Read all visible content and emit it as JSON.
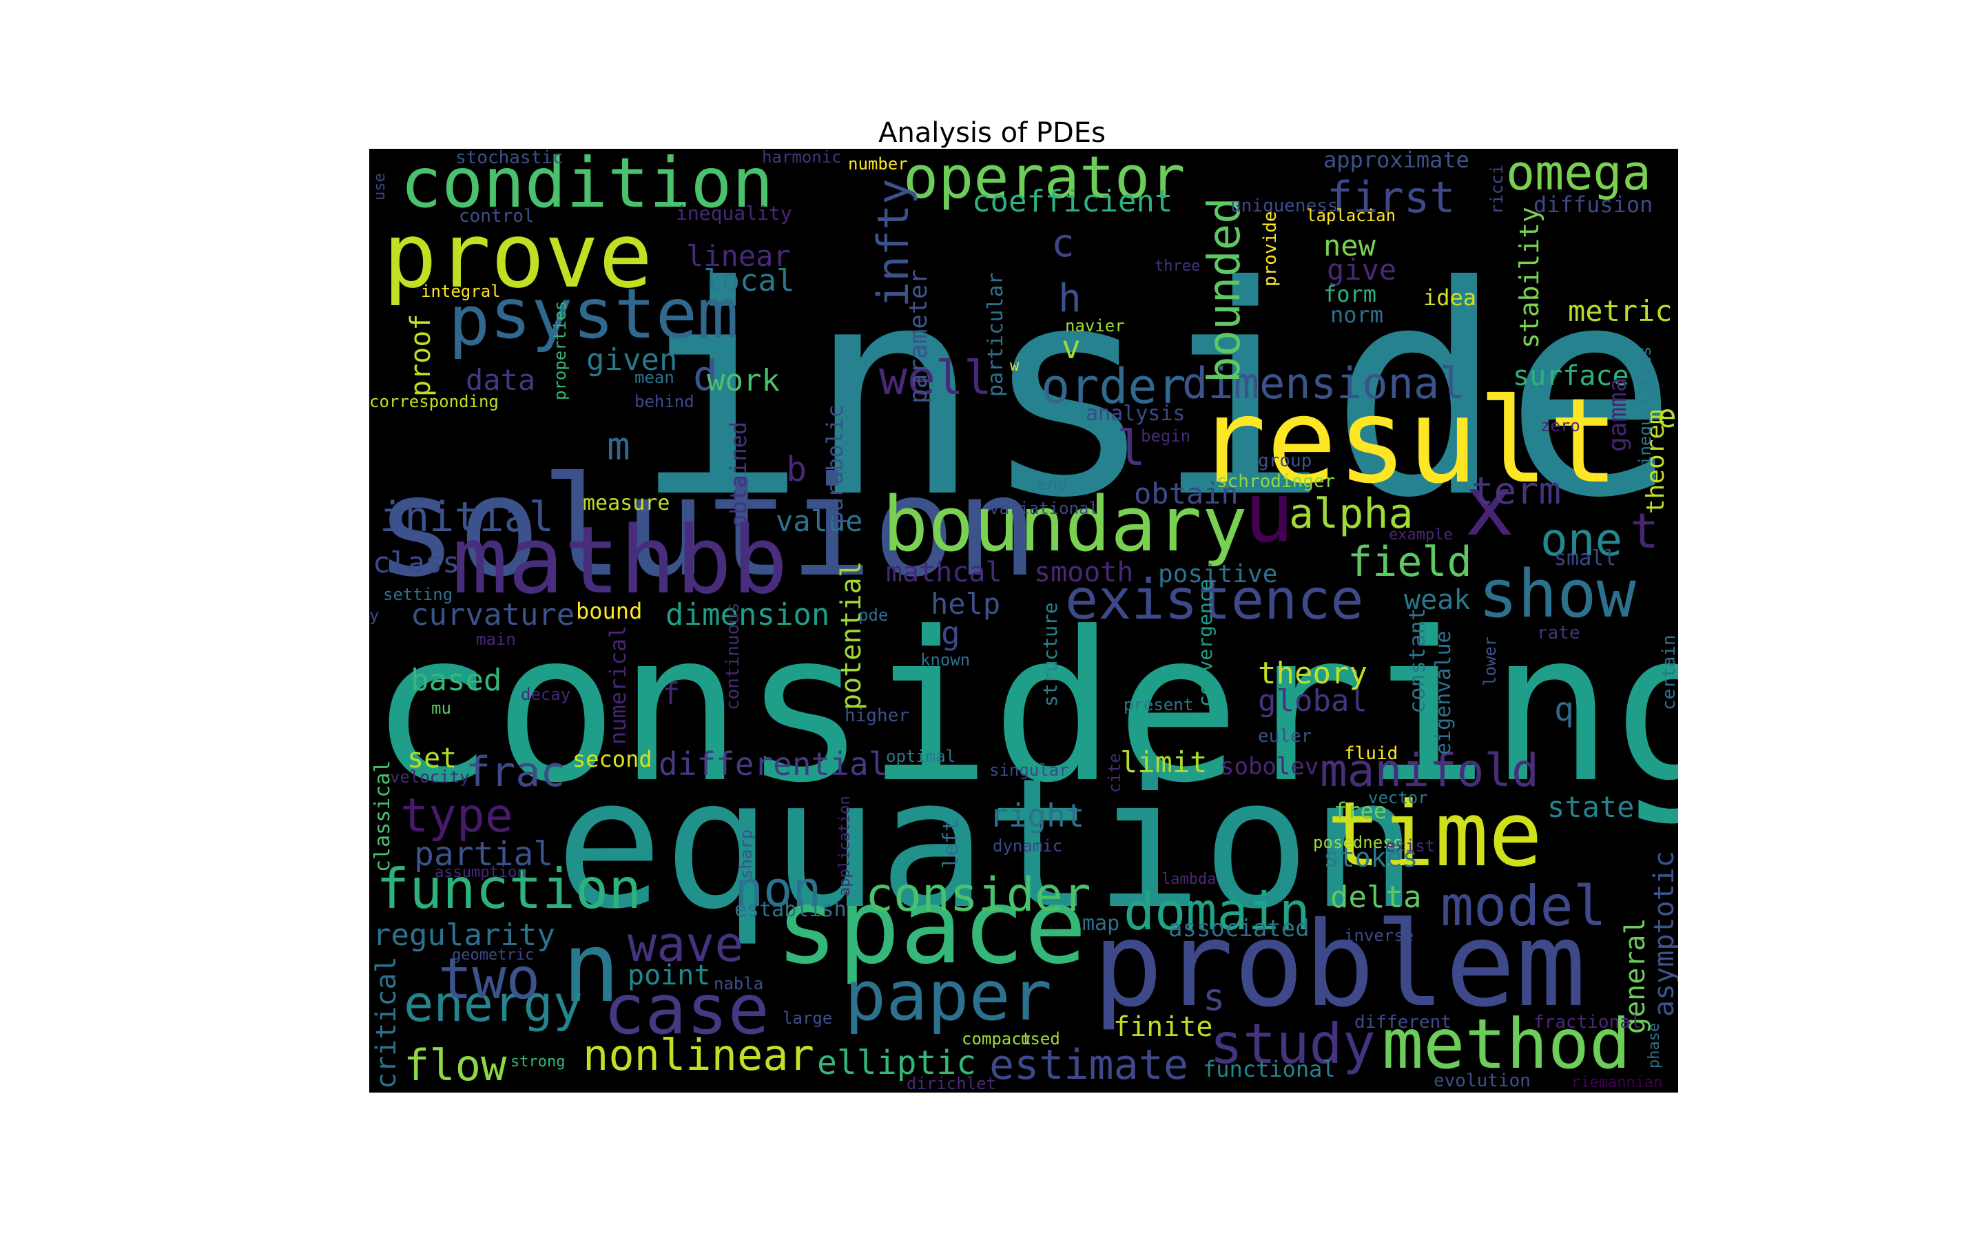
{
  "chart_data": {
    "type": "wordcloud",
    "title": "Analysis of PDEs",
    "background": "#000000",
    "colormap": "viridis",
    "words": [
      {
        "text": "inside",
        "c": "#26828e"
      },
      {
        "text": "considering",
        "c": "#1f9e89"
      },
      {
        "text": "equation",
        "c": "#21918c"
      },
      {
        "text": "solution",
        "c": "#3b528b"
      },
      {
        "text": "problem",
        "c": "#3e4989"
      },
      {
        "text": "result",
        "c": "#fde725"
      },
      {
        "text": "space",
        "c": "#35b779"
      },
      {
        "text": "mathbb",
        "c": "#472d7b"
      },
      {
        "text": "condition",
        "c": "#4ac16d"
      },
      {
        "text": "prove",
        "c": "#c2df23"
      },
      {
        "text": "time",
        "c": "#d0e11c"
      },
      {
        "text": "system",
        "c": "#31688e"
      },
      {
        "text": "boundary",
        "c": "#7ad151"
      },
      {
        "text": "u",
        "c": "#440154"
      },
      {
        "text": "n",
        "c": "#2a788e"
      },
      {
        "text": "x",
        "c": "#482475"
      },
      {
        "text": "operator",
        "c": "#6ccd5a"
      },
      {
        "text": "case",
        "c": "#443983"
      },
      {
        "text": "paper",
        "c": "#2c728e"
      },
      {
        "text": "method",
        "c": "#6ccd5a"
      },
      {
        "text": "show",
        "c": "#2c728e"
      },
      {
        "text": "existence",
        "c": "#3e4989"
      },
      {
        "text": "function",
        "c": "#2db27d"
      },
      {
        "text": "study",
        "c": "#46337f"
      },
      {
        "text": "omega",
        "c": "#7ad151"
      },
      {
        "text": "p",
        "c": "#31688e"
      },
      {
        "text": "model",
        "c": "#3e4989"
      },
      {
        "text": "domain",
        "c": "#20a386"
      },
      {
        "text": "order",
        "c": "#31688e"
      },
      {
        "text": "dimensional",
        "c": "#3b528b"
      },
      {
        "text": "consider",
        "c": "#4ac16d"
      },
      {
        "text": "nonlinear",
        "c": "#c2df23"
      },
      {
        "text": "energy",
        "c": "#25848e"
      },
      {
        "text": "two",
        "c": "#3b528b"
      },
      {
        "text": "wave",
        "c": "#46337f"
      },
      {
        "text": "manifold",
        "c": "#472d7b"
      },
      {
        "text": "well",
        "c": "#482878"
      },
      {
        "text": "estimate",
        "c": "#3e4989"
      },
      {
        "text": "non",
        "c": "#2c728e"
      },
      {
        "text": "flow",
        "c": "#8fd744"
      },
      {
        "text": "elliptic",
        "c": "#35b779"
      },
      {
        "text": "first",
        "c": "#3e4989"
      },
      {
        "text": "bounded",
        "c": "#5ec962"
      },
      {
        "text": "infty",
        "c": "#3b528b"
      },
      {
        "text": "alpha",
        "c": "#a0da39"
      },
      {
        "text": "one",
        "c": "#23888e"
      },
      {
        "text": "t",
        "c": "#482475"
      },
      {
        "text": "term",
        "c": "#46337f"
      },
      {
        "text": "field",
        "c": "#5ec962"
      },
      {
        "text": "initial",
        "c": "#3b528b"
      },
      {
        "text": "type",
        "c": "#481a6c"
      },
      {
        "text": "frac",
        "c": "#3e4989"
      },
      {
        "text": "coefficient",
        "c": "#2db27d"
      },
      {
        "text": "l",
        "c": "#46337f"
      },
      {
        "text": "h",
        "c": "#3b528b"
      },
      {
        "text": "d",
        "c": "#3b528b"
      },
      {
        "text": "m",
        "c": "#31688e"
      },
      {
        "text": "b",
        "c": "#482878"
      },
      {
        "text": "c",
        "c": "#414487"
      },
      {
        "text": "v",
        "c": "#a0da39"
      },
      {
        "text": "f",
        "c": "#482475"
      },
      {
        "text": "s",
        "c": "#414487"
      },
      {
        "text": "g",
        "c": "#3e4989"
      },
      {
        "text": "q",
        "c": "#31688e"
      },
      {
        "text": "e",
        "c": "#b5de2b"
      },
      {
        "text": "regularity",
        "c": "#2c728e"
      },
      {
        "text": "critical",
        "c": "#2c728e"
      },
      {
        "text": "partial",
        "c": "#3b528b"
      },
      {
        "text": "class",
        "c": "#3e4989"
      },
      {
        "text": "curvature",
        "c": "#3b528b"
      },
      {
        "text": "dimension",
        "c": "#1f9e89"
      },
      {
        "text": "potential",
        "c": "#a0da39"
      },
      {
        "text": "based",
        "c": "#35b779"
      },
      {
        "text": "set",
        "c": "#b5de2b"
      },
      {
        "text": "differential",
        "c": "#443983"
      },
      {
        "text": "limit",
        "c": "#addc30"
      },
      {
        "text": "right",
        "c": "#2c728e"
      },
      {
        "text": "global",
        "c": "#46337f"
      },
      {
        "text": "theory",
        "c": "#c2df23"
      },
      {
        "text": "stokes",
        "c": "#2a788e"
      },
      {
        "text": "delta",
        "c": "#5ec962"
      },
      {
        "text": "state",
        "c": "#25848e"
      },
      {
        "text": "asymptotic",
        "c": "#3b528b"
      },
      {
        "text": "general",
        "c": "#6ccd5a"
      },
      {
        "text": "weak",
        "c": "#2a788e"
      },
      {
        "text": "surface",
        "c": "#2db27d"
      },
      {
        "text": "metric",
        "c": "#b5de2b"
      },
      {
        "text": "stability",
        "c": "#7ad151"
      },
      {
        "text": "gamma",
        "c": "#482475"
      },
      {
        "text": "theorem",
        "c": "#c2df23"
      },
      {
        "text": "work",
        "c": "#4ac16d"
      },
      {
        "text": "given",
        "c": "#2a788e"
      },
      {
        "text": "local",
        "c": "#2a788e"
      },
      {
        "text": "linear",
        "c": "#482878"
      },
      {
        "text": "proof",
        "c": "#c2df23"
      },
      {
        "text": "data",
        "c": "#443983"
      },
      {
        "text": "parameter",
        "c": "#3b528b"
      },
      {
        "text": "particular",
        "c": "#2c728e"
      },
      {
        "text": "obtain",
        "c": "#3e4989"
      },
      {
        "text": "value",
        "c": "#2c728e"
      },
      {
        "text": "mathcal",
        "c": "#482878"
      },
      {
        "text": "smooth",
        "c": "#482878"
      },
      {
        "text": "help",
        "c": "#3b528b"
      },
      {
        "text": "positive",
        "c": "#2c728e"
      },
      {
        "text": "bound",
        "c": "#fde725"
      },
      {
        "text": "measure",
        "c": "#c2df23"
      },
      {
        "text": "point",
        "c": "#23888e"
      },
      {
        "text": "finite",
        "c": "#c2df23"
      },
      {
        "text": "functional",
        "c": "#25848e"
      },
      {
        "text": "associated",
        "c": "#2c728e"
      },
      {
        "text": "second",
        "c": "#d8e219"
      },
      {
        "text": "sobolev",
        "c": "#482878"
      },
      {
        "text": "new",
        "c": "#7ad151"
      },
      {
        "text": "give",
        "c": "#482878"
      },
      {
        "text": "form",
        "c": "#2db27d"
      },
      {
        "text": "norm",
        "c": "#2c728e"
      },
      {
        "text": "idea",
        "c": "#d0e11c"
      },
      {
        "text": "free",
        "c": "#6ccd5a"
      },
      {
        "text": "numerical",
        "c": "#482475"
      },
      {
        "text": "constant",
        "c": "#2c728e"
      },
      {
        "text": "eigenvalue",
        "c": "#2c728e"
      },
      {
        "text": "parabolic",
        "c": "#3b528b"
      },
      {
        "text": "small",
        "c": "#3e4989"
      },
      {
        "text": "obtained",
        "c": "#46337f"
      },
      {
        "text": "approximate",
        "c": "#3b528b"
      },
      {
        "text": "diffusion",
        "c": "#3e4989"
      },
      {
        "text": "stochastic",
        "c": "#3b528b"
      },
      {
        "text": "harmonic",
        "c": "#46337f"
      },
      {
        "text": "number",
        "c": "#fde725"
      },
      {
        "text": "uniqueness",
        "c": "#3e4989"
      },
      {
        "text": "ricci",
        "c": "#3e4989"
      },
      {
        "text": "laplacian",
        "c": "#fde725"
      },
      {
        "text": "inequality",
        "c": "#482878"
      },
      {
        "text": "control",
        "c": "#3b528b"
      },
      {
        "text": "use",
        "c": "#3e4989"
      },
      {
        "text": "integral",
        "c": "#fde725"
      },
      {
        "text": "three",
        "c": "#46337f"
      },
      {
        "text": "provide",
        "c": "#fde725"
      },
      {
        "text": "navier",
        "c": "#a0da39"
      },
      {
        "text": "mean",
        "c": "#2c728e"
      },
      {
        "text": "behind",
        "c": "#3e4989"
      },
      {
        "text": "w",
        "c": "#fde725"
      },
      {
        "text": "corresponding",
        "c": "#c2df23"
      },
      {
        "text": "properties",
        "c": "#35b779"
      },
      {
        "text": "analysis",
        "c": "#3e4989"
      },
      {
        "text": "begin",
        "c": "#482878"
      },
      {
        "text": "zero",
        "c": "#482878"
      },
      {
        "text": "group",
        "c": "#3b528b"
      },
      {
        "text": "inequalities",
        "c": "#2a788e"
      },
      {
        "text": "schrodinger",
        "c": "#8fd744"
      },
      {
        "text": "end",
        "c": "#2c728e"
      },
      {
        "text": "variational",
        "c": "#3e4989"
      },
      {
        "text": "example",
        "c": "#482878"
      },
      {
        "text": "pde",
        "c": "#2c728e"
      },
      {
        "text": "known",
        "c": "#2c728e"
      },
      {
        "text": "setting",
        "c": "#2c728e"
      },
      {
        "text": "y",
        "c": "#3e4989"
      },
      {
        "text": "main",
        "c": "#482878"
      },
      {
        "text": "continuous",
        "c": "#482878"
      },
      {
        "text": "structure",
        "c": "#25848e"
      },
      {
        "text": "convergence",
        "c": "#1f9e89"
      },
      {
        "text": "rate",
        "c": "#46337f"
      },
      {
        "text": "lower",
        "c": "#3b528b"
      },
      {
        "text": "certain",
        "c": "#2c728e"
      },
      {
        "text": "mu",
        "c": "#5ec962"
      },
      {
        "text": "decay",
        "c": "#482878"
      },
      {
        "text": "higher",
        "c": "#3b528b"
      },
      {
        "text": "present",
        "c": "#2a788e"
      },
      {
        "text": "euler",
        "c": "#3b528b"
      },
      {
        "text": "fluid",
        "c": "#fde725"
      },
      {
        "text": "velocity",
        "c": "#482878"
      },
      {
        "text": "optimal",
        "c": "#2a788e"
      },
      {
        "text": "singular",
        "c": "#3e4989"
      },
      {
        "text": "cite",
        "c": "#482878"
      },
      {
        "text": "vector",
        "c": "#2a788e"
      },
      {
        "text": "classical",
        "c": "#4ac16d"
      },
      {
        "text": "sharp",
        "c": "#3b528b"
      },
      {
        "text": "application",
        "c": "#482878"
      },
      {
        "text": "left",
        "c": "#2c728e"
      },
      {
        "text": "dynamic",
        "c": "#3e4989"
      },
      {
        "text": "posedness",
        "c": "#a0da39"
      },
      {
        "text": "exist",
        "c": "#482878"
      },
      {
        "text": "assumption",
        "c": "#482878"
      },
      {
        "text": "lambda",
        "c": "#482878"
      },
      {
        "text": "establish",
        "c": "#2c728e"
      },
      {
        "text": "map",
        "c": "#2c728e"
      },
      {
        "text": "inverse",
        "c": "#3e4989"
      },
      {
        "text": "geometric",
        "c": "#3e4989"
      },
      {
        "text": "nabla",
        "c": "#3b528b"
      },
      {
        "text": "large",
        "c": "#3b528b"
      },
      {
        "text": "different",
        "c": "#3e4989"
      },
      {
        "text": "fractional",
        "c": "#482878"
      },
      {
        "text": "phase",
        "c": "#2c728e"
      },
      {
        "text": "strong",
        "c": "#35b779"
      },
      {
        "text": "compact",
        "c": "#a0da39"
      },
      {
        "text": "used",
        "c": "#a0da39"
      },
      {
        "text": "dirichlet",
        "c": "#482878"
      },
      {
        "text": "evolution",
        "c": "#3b528b"
      },
      {
        "text": "riemannian",
        "c": "#440154"
      }
    ]
  }
}
